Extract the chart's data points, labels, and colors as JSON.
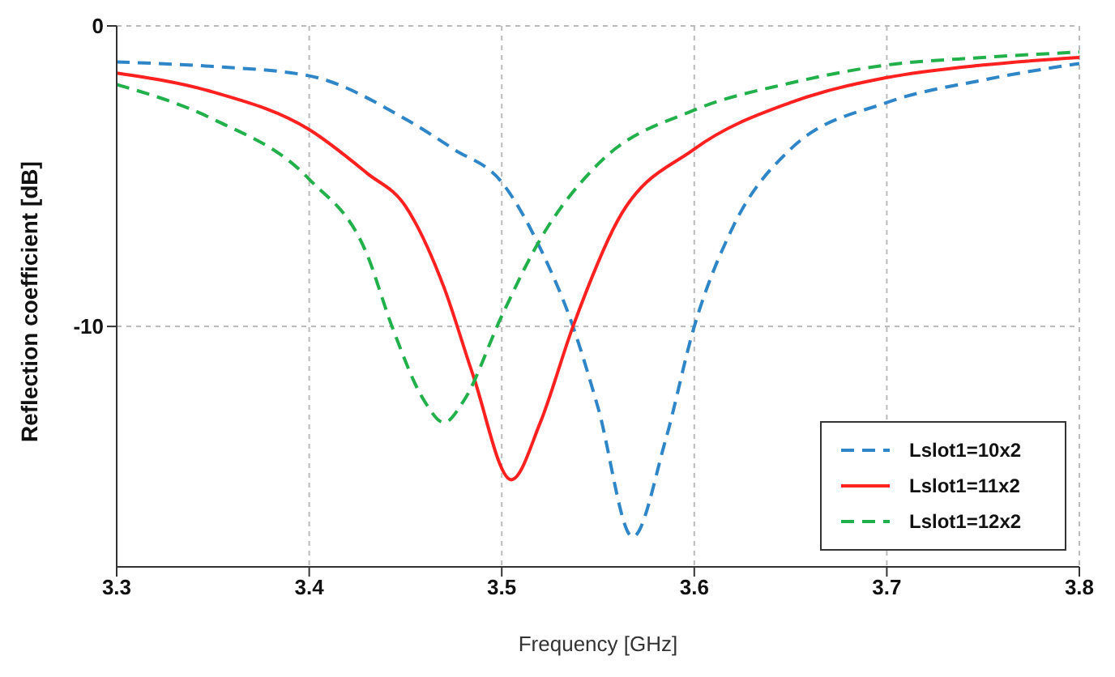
{
  "chart_data": {
    "type": "line",
    "xlabel": "Frequency [GHz]",
    "ylabel": "Reflection coefficient [dB]",
    "xlim": [
      3.3,
      3.8
    ],
    "ylim": [
      -18,
      0
    ],
    "xticks": [
      3.3,
      3.4,
      3.5,
      3.6,
      3.7,
      3.8
    ],
    "yticks": [
      0,
      -10
    ],
    "grid": true,
    "legend": "bottom right",
    "marker": "none",
    "series": [
      {
        "name": "Lslot1=10x2",
        "color": "#2e86c8",
        "line_style": "dashed",
        "x": [
          3.3,
          3.35,
          3.4,
          3.45,
          3.475,
          3.5,
          3.52,
          3.537,
          3.55,
          3.568,
          3.585,
          3.6,
          3.62,
          3.65,
          3.7,
          3.75,
          3.8
        ],
        "values": [
          -1.2,
          -1.35,
          -1.66,
          -3.1,
          -4.1,
          -5.2,
          -7.4,
          -10,
          -12.7,
          -17,
          -13.8,
          -10,
          -6.7,
          -4.1,
          -2.55,
          -1.8,
          -1.25
        ]
      },
      {
        "name": "Lslot1=11x2",
        "color": "#ff2020",
        "line_style": "solid",
        "x": [
          3.3,
          3.35,
          3.4,
          3.43,
          3.45,
          3.47,
          3.485,
          3.505,
          3.52,
          3.537,
          3.56,
          3.6,
          3.65,
          3.7,
          3.75,
          3.8
        ],
        "values": [
          -1.57,
          -2.2,
          -3.45,
          -4.9,
          -6,
          -8.7,
          -11.6,
          -15.1,
          -13.2,
          -10,
          -6.5,
          -4.1,
          -2.55,
          -1.72,
          -1.3,
          -1.05
        ]
      },
      {
        "name": "Lslot1=12x2",
        "color": "#22b04a",
        "line_style": "dashed",
        "x": [
          3.3,
          3.35,
          3.4,
          3.43,
          3.443,
          3.46,
          3.47,
          3.48,
          3.5,
          3.52,
          3.55,
          3.6,
          3.65,
          3.7,
          3.75,
          3.8
        ],
        "values": [
          -1.95,
          -3.1,
          -5.1,
          -7.6,
          -10,
          -12.5,
          -13.2,
          -12.5,
          -9.65,
          -7.1,
          -4.6,
          -2.8,
          -1.9,
          -1.3,
          -1.05,
          -0.87
        ]
      }
    ]
  }
}
